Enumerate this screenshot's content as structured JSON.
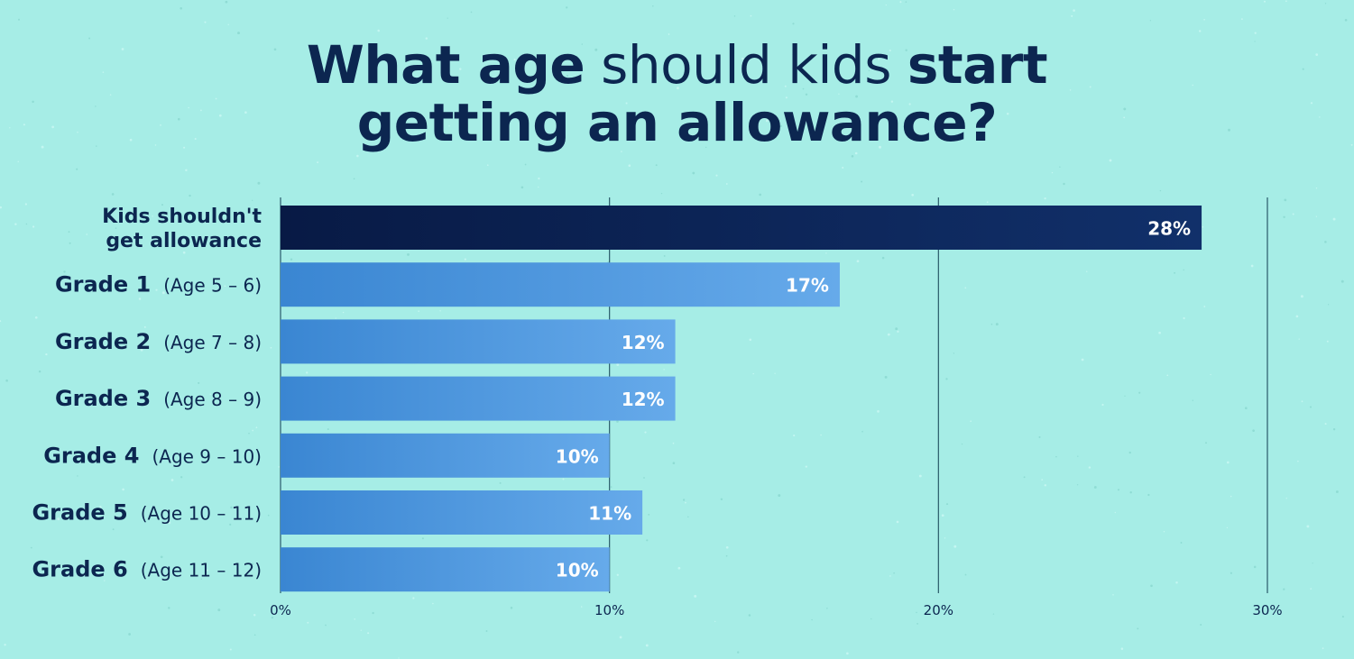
{
  "title": {
    "line1_part1": "What age",
    "line1_part2": " should kids ",
    "line1_part3": "start",
    "line2": "getting an allowance?"
  },
  "colors": {
    "background": "#a6ede6",
    "text": "#0c2650",
    "highlight_bar": "#0a1f4f",
    "bar": "#4a93d8",
    "grid": "#2a5a6a"
  },
  "chart_data": {
    "type": "bar",
    "orientation": "horizontal",
    "categories": [
      {
        "main": "Kids shouldn't",
        "main2": "get allowance",
        "sub": ""
      },
      {
        "main": "Grade 1",
        "sub": "(Age 5 – 6)"
      },
      {
        "main": "Grade 2",
        "sub": "(Age 7 – 8)"
      },
      {
        "main": "Grade 3",
        "sub": "(Age 8 – 9)"
      },
      {
        "main": "Grade 4",
        "sub": "(Age 9 – 10)"
      },
      {
        "main": "Grade 5",
        "sub": "(Age 10 – 11)"
      },
      {
        "main": "Grade 6",
        "sub": "(Age 11 – 12)"
      }
    ],
    "values": [
      28,
      17,
      12,
      12,
      10,
      11,
      10
    ],
    "value_labels": [
      "28%",
      "17%",
      "12%",
      "12%",
      "10%",
      "11%",
      "10%"
    ],
    "highlight_index": 0,
    "xlim": [
      0,
      30
    ],
    "xticks": [
      0,
      10,
      20,
      30
    ],
    "xtick_labels": [
      "0%",
      "10%",
      "20%",
      "30%"
    ],
    "grid": true,
    "legend": "none"
  }
}
